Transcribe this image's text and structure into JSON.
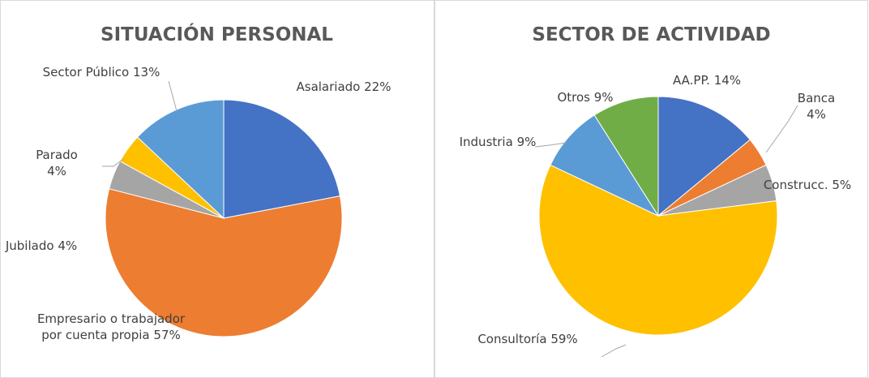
{
  "chart_data": [
    {
      "type": "pie",
      "title": "SITUACIÓN PERSONAL",
      "categories": [
        "Asalariado",
        "Empresario o trabajador por cuenta propia",
        "Jubilado",
        "Parado",
        "Sector Público"
      ],
      "values": [
        22,
        57,
        4,
        4,
        13
      ],
      "value_labels": [
        "22%",
        "57%",
        "4%",
        "4%",
        "13%"
      ],
      "colors": [
        "#4472c4",
        "#ed7d31",
        "#a5a5a5",
        "#ffc000",
        "#5b9bd5"
      ]
    },
    {
      "type": "pie",
      "title": "SECTOR DE ACTIVIDAD",
      "categories": [
        "AA.PP.",
        "Banca",
        "Construcc.",
        "Consultoría",
        "Industria",
        "Otros"
      ],
      "values": [
        14,
        4,
        5,
        59,
        9,
        9
      ],
      "value_labels": [
        "14%",
        "4%",
        "5%",
        "59%",
        "9%",
        "9%"
      ],
      "colors": [
        "#4472c4",
        "#ed7d31",
        "#a5a5a5",
        "#ffc000",
        "#5b9bd5",
        "#70ad47"
      ]
    }
  ]
}
